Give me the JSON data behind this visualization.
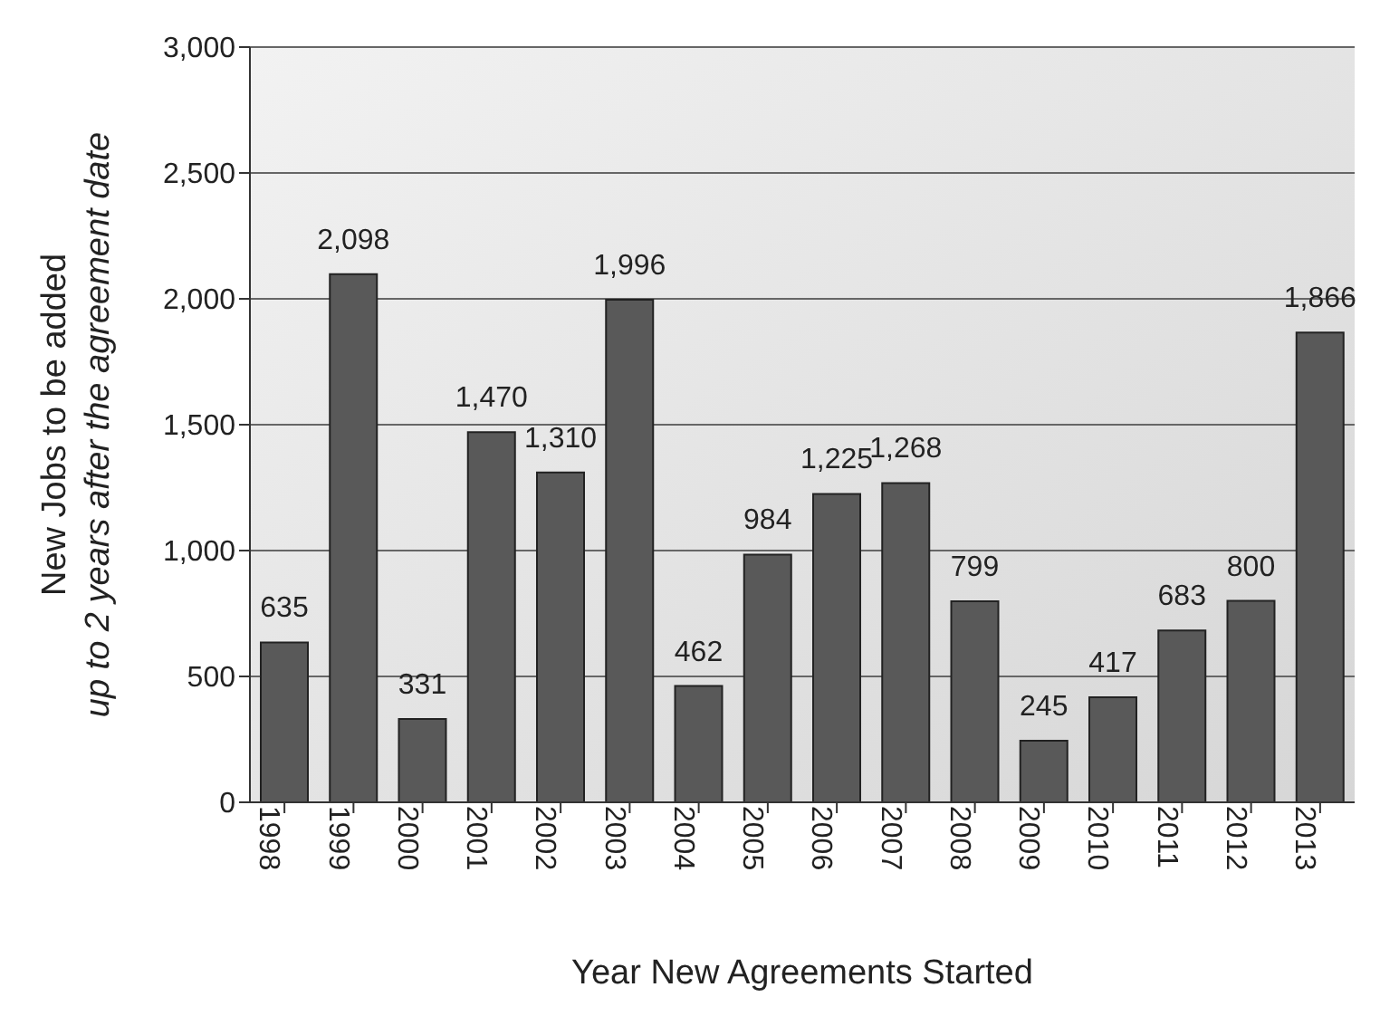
{
  "chart_data": {
    "type": "bar",
    "xlabel": "Year New Agreements Started",
    "ylabel": "New Jobs to be added\nup to 2 years after the agreement date",
    "categories": [
      "1998",
      "1999",
      "2000",
      "2001",
      "2002",
      "2003",
      "2004",
      "2005",
      "2006",
      "2007",
      "2008",
      "2009",
      "2010",
      "2011",
      "2012",
      "2013"
    ],
    "values": [
      635,
      2098,
      331,
      1470,
      1310,
      1996,
      462,
      984,
      1225,
      1268,
      799,
      245,
      417,
      683,
      800,
      1866
    ],
    "value_labels": [
      "635",
      "2,098",
      "331",
      "1,470",
      "1,310",
      "1,996",
      "462",
      "984",
      "1,225",
      "1,268",
      "799",
      "245",
      "417",
      "683",
      "800",
      "1,866"
    ],
    "color": "#595959",
    "ylim": [
      0,
      3000
    ],
    "yticks": [
      {
        "value": 0,
        "label": "0"
      },
      {
        "value": 500,
        "label": "500"
      },
      {
        "value": 1000,
        "label": "1,000"
      },
      {
        "value": 1500,
        "label": "1,500"
      },
      {
        "value": 2000,
        "label": "2,000"
      },
      {
        "value": 2500,
        "label": "2,500"
      },
      {
        "value": 3000,
        "label": "3,000"
      }
    ],
    "grid": "y"
  }
}
